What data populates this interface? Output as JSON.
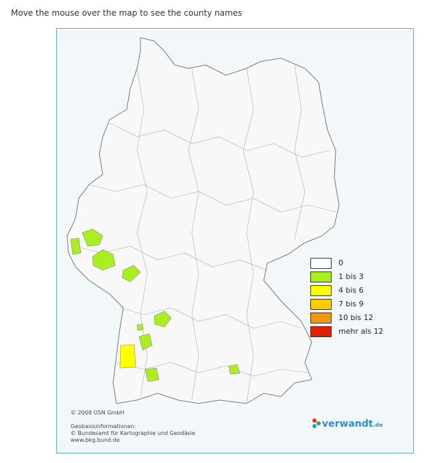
{
  "header": {
    "title": "Move the mouse over the map to see the county names"
  },
  "legend": {
    "items": [
      {
        "label": "0",
        "color": "#ffffff"
      },
      {
        "label": "1 bis 3",
        "color": "#aaee22"
      },
      {
        "label": "4 bis 6",
        "color": "#ffff00"
      },
      {
        "label": "7 bis 9",
        "color": "#ffcc00"
      },
      {
        "label": "10 bis 12",
        "color": "#ee9911"
      },
      {
        "label": "mehr als 12",
        "color": "#dd2200"
      }
    ]
  },
  "credits": {
    "copyright": "© 2008 OSN GmbH",
    "lines": [
      "Geobasisinformationen:",
      "© Bundesamt für Kartographie und Geodäsie",
      "www.bkg.bund.de"
    ]
  },
  "logo": {
    "text": "verwandt",
    "suffix": ".de"
  }
}
